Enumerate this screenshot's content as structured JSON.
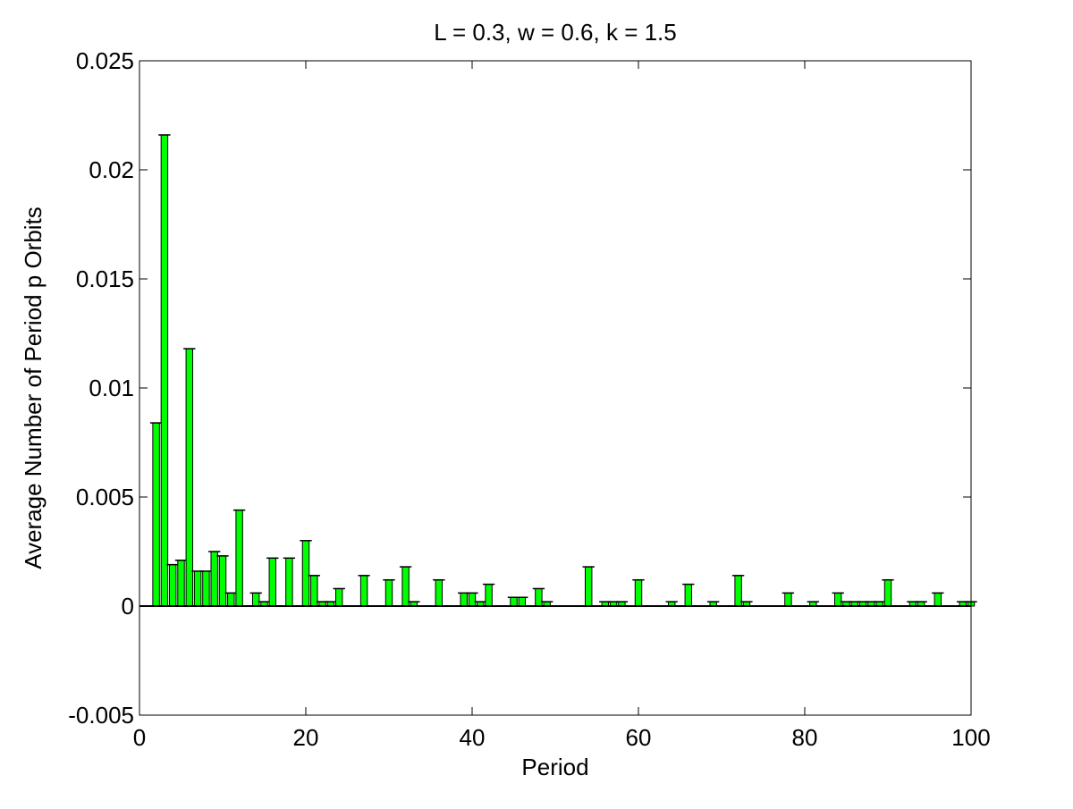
{
  "chart_data": {
    "type": "bar",
    "title": "L = 0.3, w = 0.6, k = 1.5",
    "xlabel": "Period",
    "ylabel": "Average Number of Period p Orbits",
    "xlim": [
      0,
      100
    ],
    "ylim": [
      -0.005,
      0.025
    ],
    "xticks": [
      "0",
      "20",
      "40",
      "60",
      "80",
      "100"
    ],
    "yticks": [
      "-0.005",
      "0",
      "0.005",
      "0.01",
      "0.015",
      "0.02",
      "0.025"
    ],
    "grid": false,
    "legend": "none",
    "bar_color": "#00ff00",
    "error_bars": true,
    "x": [
      2,
      3,
      4,
      5,
      6,
      7,
      8,
      9,
      10,
      11,
      12,
      14,
      15,
      16,
      18,
      20,
      21,
      22,
      23,
      24,
      27,
      30,
      32,
      33,
      36,
      39,
      40,
      41,
      42,
      45,
      46,
      48,
      49,
      54,
      56,
      57,
      58,
      60,
      64,
      66,
      69,
      72,
      73,
      78,
      81,
      84,
      85,
      86,
      87,
      88,
      89,
      90,
      93,
      94,
      96,
      99,
      100
    ],
    "values": [
      0.0084,
      0.0216,
      0.0019,
      0.0021,
      0.0118,
      0.0016,
      0.0016,
      0.0025,
      0.0023,
      0.0006,
      0.0044,
      0.0006,
      0.0002,
      0.0022,
      0.0022,
      0.003,
      0.0014,
      0.0002,
      0.0002,
      0.0008,
      0.0014,
      0.0012,
      0.0018,
      0.0002,
      0.0012,
      0.0006,
      0.0006,
      0.0002,
      0.001,
      0.0004,
      0.0004,
      0.0008,
      0.0002,
      0.0018,
      0.0002,
      0.0002,
      0.0002,
      0.0012,
      0.0002,
      0.001,
      0.0002,
      0.0014,
      0.0002,
      0.0006,
      0.0002,
      0.0006,
      0.0002,
      0.0002,
      0.0002,
      0.0002,
      0.0002,
      0.0012,
      0.0002,
      0.0002,
      0.0006,
      0.0002,
      0.0002
    ]
  }
}
